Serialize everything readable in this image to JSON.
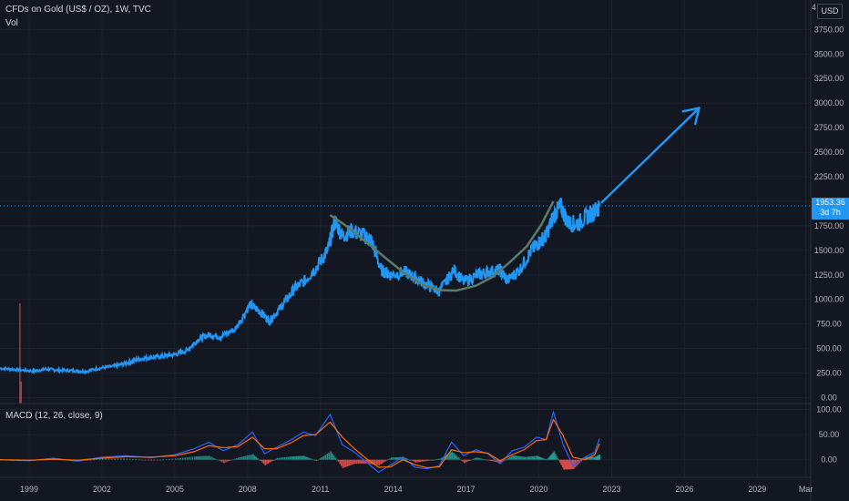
{
  "header": {
    "title": "CFDs on Gold (US$ / OZ), 1W, TVC",
    "volume_label": "Vol",
    "macd_label": "MACD (12, 26, close, 9)",
    "currency": "USD",
    "axis_clipped_label": "4"
  },
  "price_tag": {
    "price": "1953.36",
    "countdown": "3d 7h"
  },
  "colors": {
    "background": "#131722",
    "price_line": "#2196f3",
    "cup_curve": "#5b7b6a",
    "arrow": "#2196f3",
    "macd_line": "#2962ff",
    "signal_line": "#ff6d00",
    "hist_positive": "#26a69a",
    "hist_negative": "#ef5350",
    "grid": "#1e222d",
    "axis_text": "#b2b5be"
  },
  "chart_data": [
    {
      "type": "line",
      "title": "CFDs on Gold (US$ / OZ), 1W, TVC",
      "x_tick_labels": [
        "1999",
        "2002",
        "2005",
        "2008",
        "2011",
        "2014",
        "2017",
        "2020",
        "2023",
        "2026",
        "2029",
        "Mar"
      ],
      "y_tick_labels": [
        "3750.00",
        "3500.00",
        "3250.00",
        "3000.00",
        "2750.00",
        "2500.00",
        "2250.00",
        "2000.00",
        "1750.00",
        "1500.00",
        "1250.00",
        "1000.00",
        "750.00",
        "500.00",
        "250.00",
        "0.00"
      ],
      "ylim": [
        -60,
        4050
      ],
      "xlim": [
        1997.8,
        2031.2
      ],
      "current_price": 1953.36,
      "series": [
        {
          "x": [
            1997.8,
            1998.5,
            1999.2,
            1999.7,
            2000.2,
            2000.8,
            2001.3,
            2001.9,
            2002.5,
            2003.0,
            2003.5,
            2004.0,
            2004.5,
            2005.0,
            2005.5,
            2006.0,
            2006.4,
            2006.9,
            2007.5,
            2008.1,
            2008.5,
            2008.9,
            2009.4,
            2009.9,
            2010.4,
            2010.9,
            2011.3,
            2011.6,
            2011.9,
            2012.3,
            2012.8,
            2013.1,
            2013.5,
            2013.9,
            2014.5,
            2014.9,
            2015.4,
            2015.9,
            2016.5,
            2016.9,
            2017.5,
            2017.9,
            2018.4,
            2018.7,
            2019.2,
            2019.7,
            2020.0,
            2020.3,
            2020.6,
            2020.9,
            2021.2,
            2021.6,
            2022.0,
            2022.3,
            2022.5
          ],
          "y": [
            300,
            285,
            270,
            290,
            280,
            275,
            265,
            300,
            320,
            350,
            390,
            410,
            420,
            440,
            480,
            600,
            640,
            620,
            700,
            950,
            880,
            780,
            930,
            1100,
            1200,
            1350,
            1500,
            1800,
            1650,
            1700,
            1650,
            1600,
            1300,
            1250,
            1280,
            1220,
            1150,
            1080,
            1300,
            1180,
            1250,
            1280,
            1300,
            1190,
            1300,
            1500,
            1580,
            1650,
            1850,
            1950,
            1780,
            1770,
            1850,
            1900,
            1950
          ]
        }
      ],
      "annotations": [
        {
          "type": "cup_curve",
          "x": [
            2011.4,
            2012.0,
            2012.6,
            2013.2,
            2013.8,
            2014.5,
            2015.2,
            2015.9,
            2016.6,
            2017.4,
            2018.1,
            2018.8,
            2019.5,
            2020.1,
            2020.6
          ],
          "y": [
            1860,
            1760,
            1640,
            1520,
            1400,
            1260,
            1150,
            1095,
            1090,
            1140,
            1230,
            1380,
            1540,
            1760,
            2000
          ]
        },
        {
          "type": "forecast_arrow",
          "x": [
            2022.6,
            2026.6
          ],
          "y": [
            1990,
            2950
          ]
        }
      ]
    },
    {
      "type": "bar",
      "title": "Vol",
      "series": [
        {
          "x": [
            1998.6,
            1998.65
          ],
          "values": [
            100,
            22
          ]
        }
      ]
    },
    {
      "type": "line",
      "title": "MACD (12, 26, close, 9)",
      "y_tick_labels": [
        "100.00",
        "50.00",
        "0.00"
      ],
      "ylim": [
        -35,
        110
      ],
      "x": [
        1997.8,
        1999.0,
        2000.0,
        2001.0,
        2002.0,
        2003.0,
        2004.0,
        2005.0,
        2005.8,
        2006.4,
        2007.0,
        2007.6,
        2008.2,
        2008.7,
        2009.2,
        2009.8,
        2010.3,
        2010.8,
        2011.4,
        2011.9,
        2012.4,
        2012.9,
        2013.4,
        2013.9,
        2014.4,
        2014.9,
        2015.4,
        2015.9,
        2016.4,
        2016.9,
        2017.4,
        2017.9,
        2018.4,
        2018.9,
        2019.4,
        2019.9,
        2020.3,
        2020.6,
        2021.0,
        2021.4,
        2021.9,
        2022.3,
        2022.5
      ],
      "series": [
        {
          "name": "MACD",
          "values": [
            0,
            -2,
            3,
            -3,
            5,
            8,
            4,
            10,
            22,
            35,
            18,
            30,
            55,
            12,
            25,
            40,
            55,
            48,
            90,
            30,
            15,
            -5,
            -25,
            -10,
            5,
            -15,
            -18,
            -12,
            35,
            8,
            20,
            12,
            -8,
            18,
            25,
            45,
            40,
            95,
            30,
            -12,
            5,
            15,
            42
          ]
        },
        {
          "name": "Signal",
          "values": [
            0,
            -1,
            1,
            -1,
            3,
            6,
            5,
            8,
            16,
            28,
            24,
            26,
            45,
            22,
            22,
            34,
            48,
            50,
            75,
            45,
            22,
            2,
            -15,
            -14,
            0,
            -10,
            -16,
            -14,
            20,
            14,
            16,
            13,
            -2,
            10,
            20,
            38,
            40,
            80,
            48,
            5,
            0,
            10,
            32
          ]
        }
      ]
    }
  ]
}
